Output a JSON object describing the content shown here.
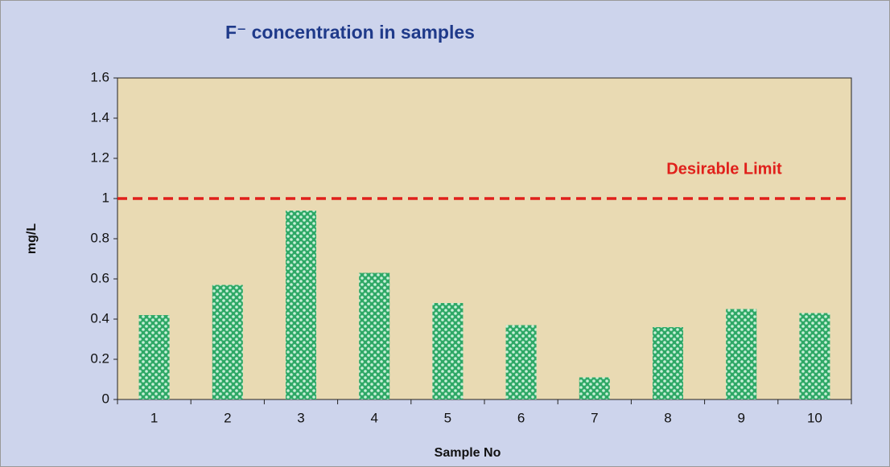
{
  "chart_data": {
    "type": "bar",
    "title": "F⁻ concentration in samples",
    "x_label": "Sample No",
    "y_label": "mg/L",
    "categories": [
      "1",
      "2",
      "3",
      "4",
      "5",
      "6",
      "7",
      "8",
      "9",
      "10"
    ],
    "values": [
      0.42,
      0.57,
      0.94,
      0.63,
      0.48,
      0.37,
      0.11,
      0.36,
      0.45,
      0.43
    ],
    "color": "#2ea866",
    "ylim": [
      0,
      1.6
    ],
    "yticks": [
      0,
      0.2,
      0.4,
      0.6,
      0.8,
      1,
      1.2,
      1.4,
      1.6
    ],
    "reference_line": {
      "value": 1,
      "label": "Desirable Limit",
      "color": "#e0201b"
    }
  }
}
